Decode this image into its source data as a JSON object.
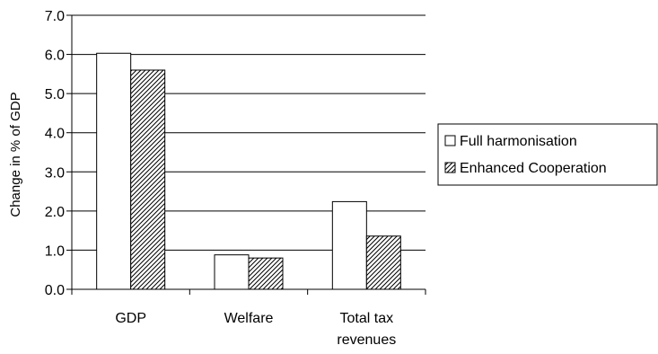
{
  "chart_data": {
    "type": "bar",
    "categories": [
      "GDP",
      "Welfare",
      "Total tax revenues"
    ],
    "category_label_lines": [
      [
        "GDP"
      ],
      [
        "Welfare"
      ],
      [
        "Total tax",
        "revenues"
      ]
    ],
    "series": [
      {
        "name": "Full harmonisation",
        "values": [
          6.03,
          0.88,
          2.24
        ],
        "fill": "#ffffff",
        "pattern": "none"
      },
      {
        "name": "Enhanced Cooperation",
        "values": [
          5.6,
          0.8,
          1.36
        ],
        "fill": "#ffffff",
        "pattern": "diagonal-hatch"
      }
    ],
    "title": "",
    "xlabel": "",
    "ylabel": "Change in % of GDP",
    "ylim": [
      0,
      7
    ],
    "yticks": [
      "0.0",
      "1.0",
      "2.0",
      "3.0",
      "4.0",
      "5.0",
      "6.0",
      "7.0"
    ],
    "grid": true,
    "legend_position": "right"
  }
}
